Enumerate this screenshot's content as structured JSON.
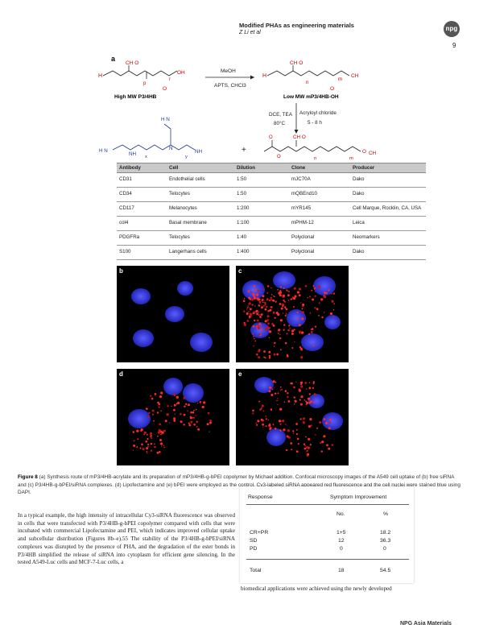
{
  "header": {
    "title": "Modified PHAs as engineering materials",
    "authors": "Z Li et al",
    "logo": "npg",
    "page_number": "9"
  },
  "scheme": {
    "label_a": "a",
    "reagent_top": "MeOH",
    "reagent_bottom": "APTS, CHCl3",
    "left_name": "High MW P3/4HB",
    "right_name": "Low MW mP3/4HB-OH",
    "step2_cond1": "DCE, TEA",
    "step2_cond2": "80°C",
    "step2_reagent": "Acryloyl chloride",
    "step2_time": "5 - 8 h",
    "plus": "+"
  },
  "antibody_table": {
    "headers": [
      "Antibody",
      "Cell",
      "Dilution",
      "Clone",
      "Producer"
    ],
    "rows": [
      [
        "CD31",
        "Endothelial cells",
        "1:50",
        "mJC70A",
        "Dako"
      ],
      [
        "CD34",
        "Telocytes",
        "1:50",
        "mQBEnd10",
        "Dako"
      ],
      [
        "CD117",
        "Melanocytes",
        "1:200",
        "mYR145",
        "Cell Marque, Rocklin, CA, USA"
      ],
      [
        "col4",
        "Basal membrane",
        "1:100",
        "mPHM-12",
        "Leica"
      ],
      [
        "PDGFRa",
        "Telocytes",
        "1:40",
        "Polyclonal",
        "Neomarkers"
      ],
      [
        "S100",
        "Langerhans cells",
        "1:400",
        "Polyclonal",
        "Dako"
      ]
    ]
  },
  "panels": [
    "b",
    "c",
    "d",
    "e"
  ],
  "caption": {
    "fig": "Figure 8",
    "text": "(a) Synthesis route of mP3/4HB-acrylate and its preparation of mP3/4HB-g-bPEI copolymer by Michael addition. Confocal microscopy images of the A549 cell uptake of (b) free siRNA and (c) P3/4HB-g-bPEI/siRNA complexes. (d) Lipofectamine and (e) bPEI were employed as the control. Cy3-labeled siRNA appeared red fluorescence and the cell nuclei were stained blue using DAPI."
  },
  "body": {
    "paragraph": "In a typical example, the high intensity of intracellular Cy3-siRNA fluorescence was observed in cells that were transfected with P3/4HB-g-bPEI copolymer compared with cells that were incubated with commercial Lipofectamine and PEI, which indicates improved cellular uptake and subcellular distribution (Figures 8b–e).55 The stability of the P3/4HB-g-bPEI/siRNA complexes was disrupted by the presence of PHA, and the degradation of the ester bonds in P3/4HB simplified the release of siRNA into cytoplasm for efficient gene silencing. In the tested A549-Luc cells and MCF-7-Luc cells, a",
    "right_fragment": "biomedical applications were achieved using the newly developed"
  },
  "response_table": {
    "col1": "Response",
    "col2": "Symptom Improvement",
    "sub_no": "No.",
    "sub_pct": "%",
    "rows": [
      {
        "label": "CR+PR",
        "no": "1+5",
        "pct": "18.2"
      },
      {
        "label": "SD",
        "no": "12",
        "pct": "36.3"
      },
      {
        "label": "PD",
        "no": "0",
        "pct": "0"
      }
    ],
    "total": {
      "label": "Total",
      "no": "18",
      "pct": "54.5"
    }
  },
  "footer": "NPG Asia Materials"
}
